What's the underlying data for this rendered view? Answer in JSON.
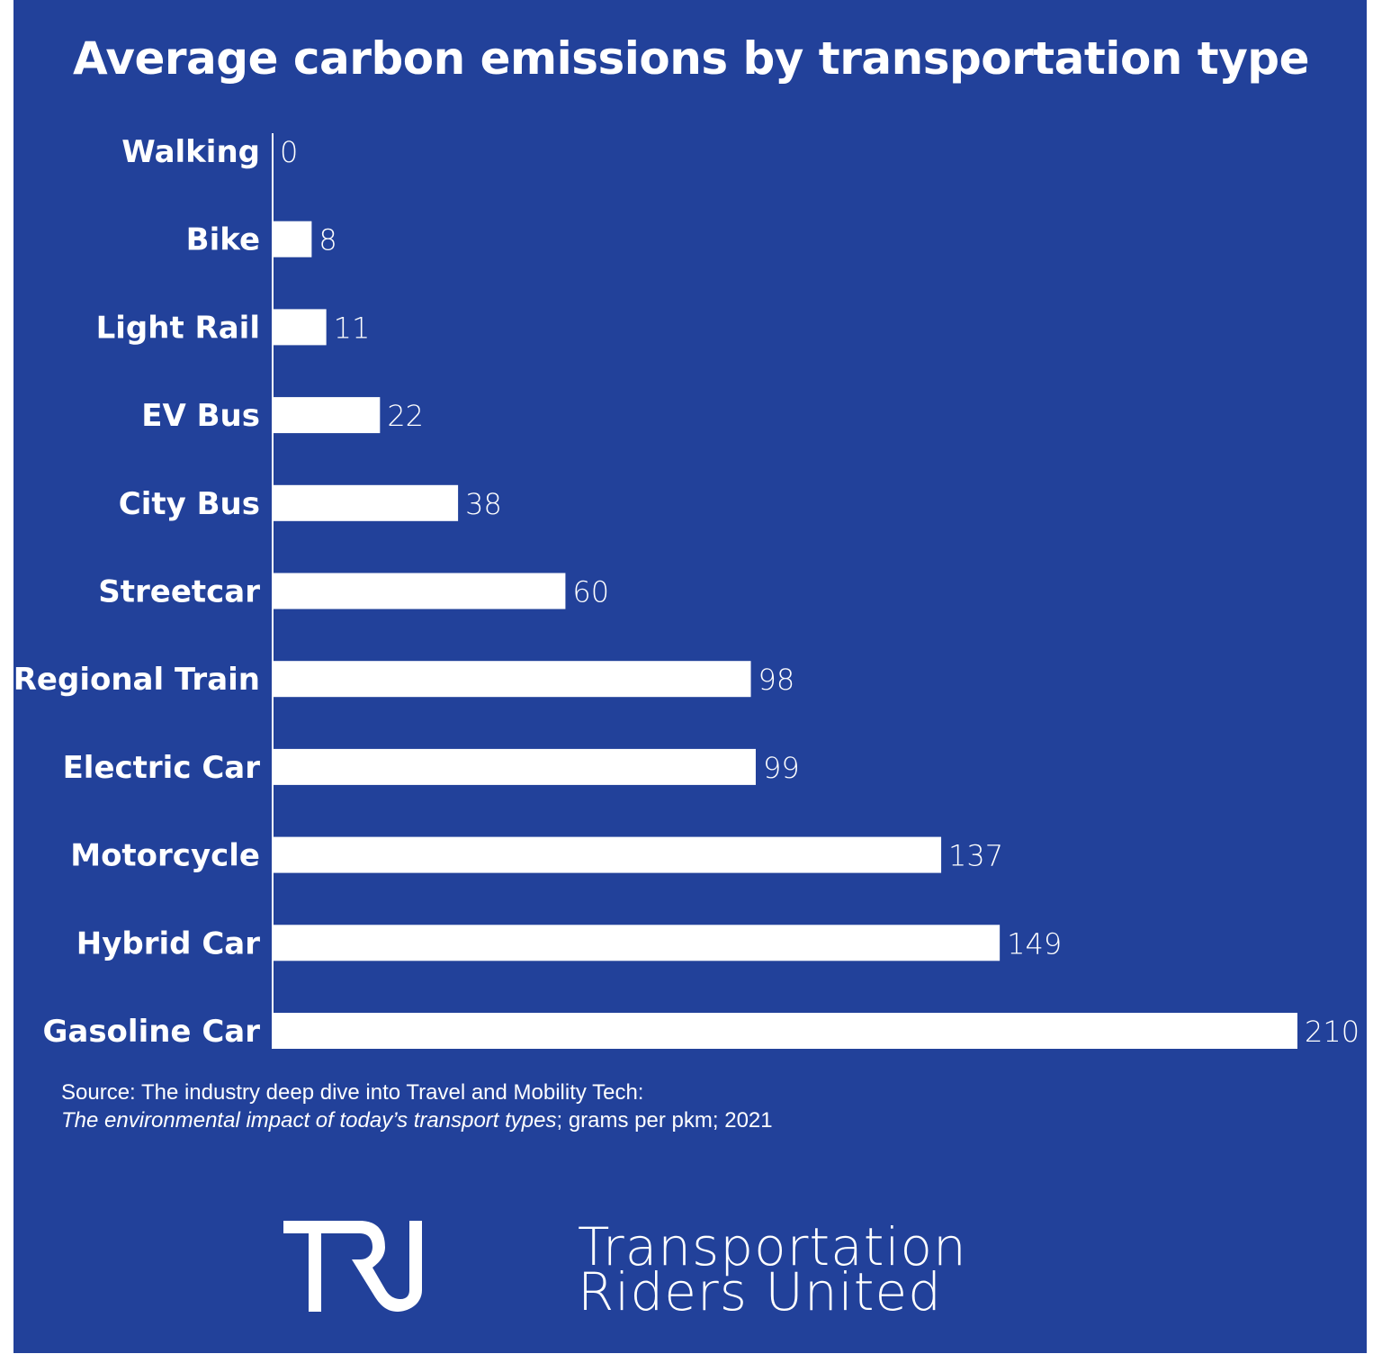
{
  "chart_data": {
    "type": "bar",
    "orientation": "horizontal",
    "title": "Average carbon emissions by transportation type",
    "categories": [
      "Walking",
      "Bike",
      "Light Rail",
      "EV Bus",
      "City Bus",
      "Streetcar",
      "Regional Train",
      "Electric Car",
      "Motorcycle",
      "Hybrid Car",
      "Gasoline Car"
    ],
    "values": [
      0,
      8,
      11,
      22,
      38,
      60,
      98,
      99,
      137,
      149,
      210
    ],
    "xlim": [
      0,
      210
    ],
    "grid": false,
    "bar_color": "#ffffff",
    "background_color": "#22419a",
    "data_labels": true
  },
  "source": {
    "line1": "Source: The industry deep dive into Travel and Mobility Tech:",
    "line2_italic": "The environmental impact of today’s transport types",
    "line2_rest": "; grams per pkm; 2021"
  },
  "logo": {
    "mark": "TRU",
    "line1": "Transportation",
    "line2": "Riders United"
  }
}
